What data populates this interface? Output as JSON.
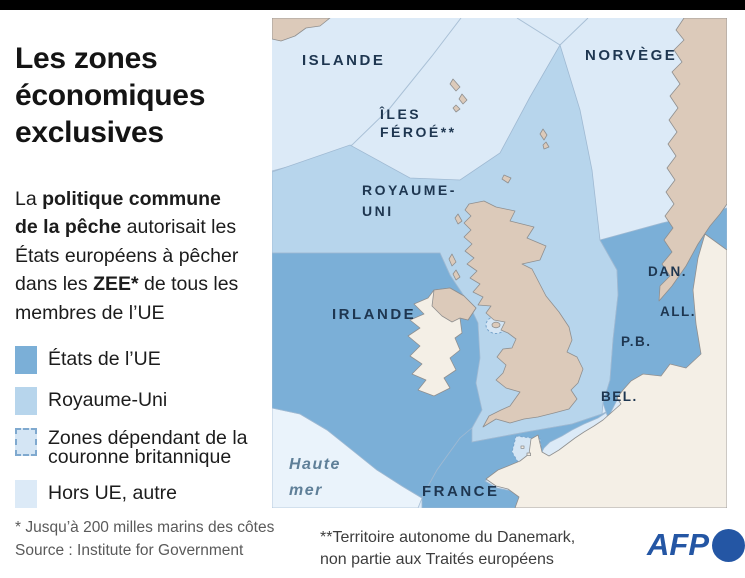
{
  "header": {
    "title_lines": [
      "Les zones",
      "économiques",
      "exclusives"
    ]
  },
  "intro": {
    "lines": [
      [
        {
          "t": "La ",
          "b": 0
        },
        {
          "t": "politique commune",
          "b": 1
        }
      ],
      [
        {
          "t": "de la pêche",
          "b": 1
        },
        {
          "t": " autorisait les",
          "b": 0
        }
      ],
      [
        {
          "t": "États européens à pêcher",
          "b": 0
        }
      ],
      [
        {
          "t": "dans les ",
          "b": 0
        },
        {
          "t": "ZEE*",
          "b": 1
        },
        {
          "t": " de tous les",
          "b": 0
        }
      ],
      [
        {
          "t": "membres de l’UE",
          "b": 0
        }
      ]
    ]
  },
  "legend": {
    "items": [
      {
        "label": "États de l’UE",
        "color_key": "eu_zone",
        "dashed": false
      },
      {
        "label": "Royaume-Uni",
        "color_key": "uk_zone",
        "dashed": false
      },
      {
        "label": "Zones dépendant de la couronne britannique",
        "color_key": "crown_zone",
        "dashed": true
      },
      {
        "label": "Hors UE, autre",
        "color_key": "non_eu_sea",
        "dashed": false
      }
    ]
  },
  "footnotes": {
    "asterisk": "* Jusqu’à 200 milles marins des côtes",
    "source": "Source : Institute for Government"
  },
  "map_note": {
    "line1": "**Territoire autonome du Danemark,",
    "line2": "non partie aux Traités européens"
  },
  "branding": {
    "name": "AFP"
  },
  "map": {
    "labels": {
      "iceland": "ISLANDE",
      "faroe1": "ÎLES",
      "faroe2": "FÉROÉ**",
      "norway": "NORVÈGE",
      "uk1": "ROYAUME-",
      "uk2": "UNI",
      "ireland": "IRLANDE",
      "denmark": "DAN.",
      "germany": "ALL.",
      "netherlands": "P.B.",
      "belgium": "BEL.",
      "france": "FRANCE",
      "highsea1": "Haute",
      "highsea2": "mer"
    }
  },
  "colors": {
    "eu_zone": "#7bafd7",
    "uk_zone": "#b7d5ec",
    "crown_zone": "#d4e5f4",
    "non_eu_sea": "#dceaf7",
    "high_sea": "#eaf3fb",
    "land_non_eu": "#dccaba",
    "land_eu": "#f4efe6",
    "label": "#1e3650",
    "high_sea_label": "#5f7f98",
    "afp_blue": "#2456a4",
    "note": "#3d3d3d",
    "footnote": "#5a5a5a",
    "title": "#141414"
  }
}
